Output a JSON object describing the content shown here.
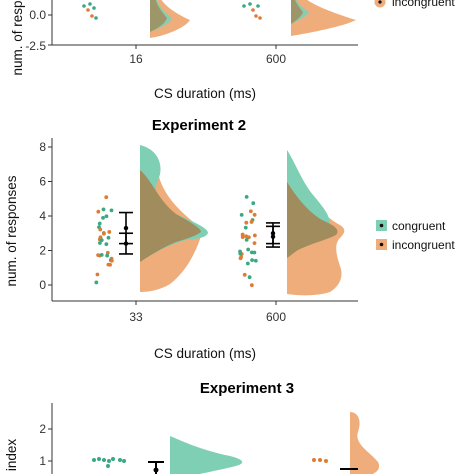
{
  "colors": {
    "congruent": "#3aa883",
    "incongruent": "#e07b34",
    "congruent_fill": "#7fcfb4",
    "incongruent_fill": "#f0ad7c",
    "overlap_fill": "#a08c5c"
  },
  "chart_data": [
    {
      "type": "raincloud",
      "title": "",
      "xlabel": "CS duration (ms)",
      "ylabel": "num. of responses",
      "categories": [
        "16",
        "600"
      ],
      "ylim": [
        -2.5,
        2.5
      ],
      "yticks": [
        "0.0",
        "-2.5"
      ],
      "legend": [
        "congruent",
        "incongruent"
      ]
    },
    {
      "type": "raincloud",
      "title": "Experiment 2",
      "xlabel": "CS duration (ms)",
      "ylabel": "num. of responses",
      "categories": [
        "33",
        "600"
      ],
      "ylim": [
        -1,
        8.5
      ],
      "yticks": [
        "0",
        "2",
        "4",
        "6",
        "8"
      ],
      "legend": [
        "congruent",
        "incongruent"
      ],
      "series": [
        {
          "name": "congruent",
          "mean": [
            3.3,
            3.0
          ],
          "error": [
            0.9,
            0.6
          ]
        },
        {
          "name": "incongruent",
          "mean": [
            2.4,
            2.8
          ],
          "error": [
            0.6,
            0.6
          ]
        }
      ]
    },
    {
      "type": "raincloud",
      "title": "Experiment 3",
      "xlabel": "",
      "ylabel": "index",
      "categories": [
        "",
        ""
      ],
      "ylim": [
        0,
        3
      ],
      "yticks": [
        "2",
        "1"
      ],
      "legend": [
        "congruent",
        "incongruent"
      ]
    }
  ]
}
